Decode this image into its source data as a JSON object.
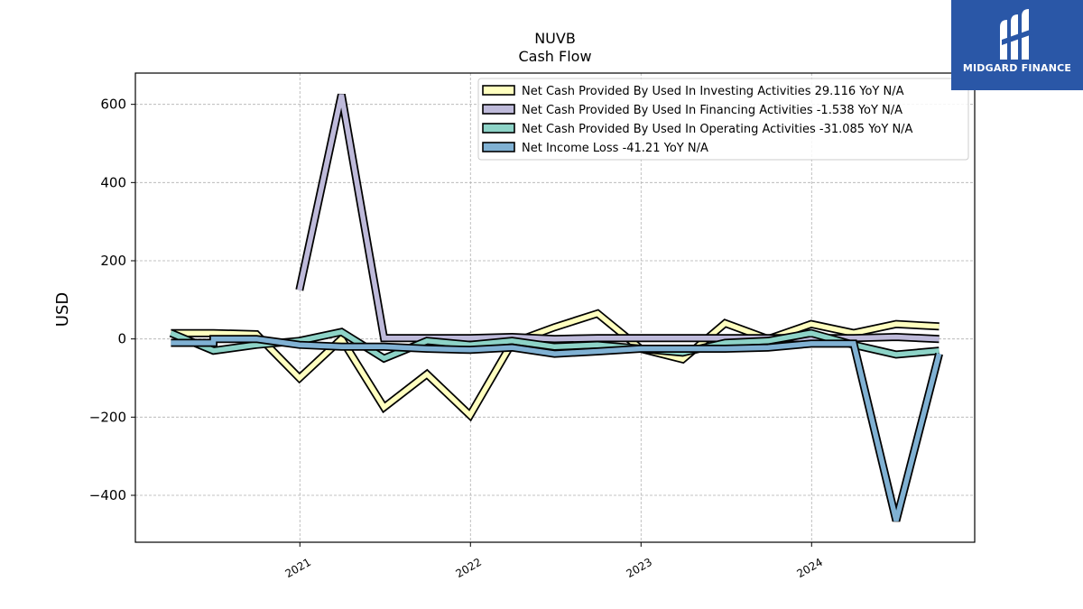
{
  "chart_data": {
    "type": "line",
    "title": "NUVB",
    "subtitle": "Cash Flow",
    "xlabel": "",
    "ylabel": "USD",
    "xlim": [
      "2020-01-15",
      "2024-12-15"
    ],
    "ylim": [
      -520,
      680
    ],
    "xticks": [
      {
        "date": "2021-01-01",
        "label": "2021"
      },
      {
        "date": "2022-01-01",
        "label": "2022"
      },
      {
        "date": "2023-01-01",
        "label": "2023"
      },
      {
        "date": "2024-01-01",
        "label": "2024"
      }
    ],
    "yticks": [
      {
        "value": 600,
        "label": "600"
      },
      {
        "value": 400,
        "label": "400"
      },
      {
        "value": 200,
        "label": "200"
      },
      {
        "value": 0,
        "label": "0"
      },
      {
        "value": -200,
        "label": "−200"
      },
      {
        "value": -400,
        "label": "−400"
      }
    ],
    "grid": true,
    "legend_position": "top-right",
    "series": [
      {
        "name": "Net Cash Provided By Used In Investing Activities",
        "legend": "Net Cash Provided By Used In Investing Activities  29.116 YoY N/A",
        "color": "#ffffbf",
        "x": [
          "2020-03-31",
          "2020-06-30",
          "2020-09-30",
          "2020-12-31",
          "2021-03-31",
          "2021-06-30",
          "2021-09-30",
          "2021-12-31",
          "2022-03-31",
          "2022-06-30",
          "2022-09-30",
          "2022-12-31",
          "2023-03-31",
          "2023-06-30",
          "2023-09-30",
          "2023-12-31",
          "2024-03-31",
          "2024-06-30",
          "2024-09-30"
        ],
        "y": [
          15,
          15,
          12,
          -100,
          0,
          -175,
          -90,
          -195,
          -10,
          30,
          65,
          -25,
          -52,
          40,
          0,
          38,
          15,
          38,
          32
        ]
      },
      {
        "name": "Net Cash Provided By Used In Financing Activities",
        "legend": "Net Cash Provided By Used In Financing Activities  -1.538 YoY N/A",
        "color": "#bebada",
        "x": [
          "2020-12-31",
          "2021-03-31",
          "2021-06-30",
          "2021-09-30",
          "2021-12-31",
          "2022-03-31",
          "2022-06-30",
          "2022-09-30",
          "2022-12-31",
          "2023-03-31",
          "2023-06-30",
          "2023-09-30",
          "2023-12-31",
          "2024-03-31",
          "2024-06-30",
          "2024-09-30"
        ],
        "y": [
          125,
          625,
          2,
          2,
          2,
          5,
          0,
          2,
          2,
          2,
          2,
          2,
          2,
          2,
          5,
          0
        ]
      },
      {
        "name": "Net Cash Provided By Used In Operating Activities",
        "legend": "Net Cash Provided By Used In Operating Activities  -31.085 YoY N/A",
        "color": "#8dd3c7",
        "x": [
          "2020-03-31",
          "2020-06-30",
          "2020-09-30",
          "2020-12-31",
          "2021-03-31",
          "2021-06-30",
          "2021-09-30",
          "2021-12-31",
          "2022-03-31",
          "2022-06-30",
          "2022-09-30",
          "2022-12-31",
          "2023-03-31",
          "2023-06-30",
          "2023-09-30",
          "2023-12-31",
          "2024-03-31",
          "2024-06-30",
          "2024-09-30"
        ],
        "y": [
          15,
          -30,
          -15,
          -5,
          18,
          -50,
          -5,
          -15,
          -5,
          -20,
          -15,
          -25,
          -35,
          -10,
          -5,
          15,
          -15,
          -40,
          -30
        ]
      },
      {
        "name": "Net Income Loss",
        "legend": "Net Income Loss  -41.21 YoY N/A",
        "color": "#80b1d3",
        "x": [
          "2020-03-31",
          "2020-06-30",
          "2020-06-30",
          "2020-09-30",
          "2020-12-31",
          "2021-03-31",
          "2021-06-30",
          "2021-09-30",
          "2021-12-31",
          "2022-03-31",
          "2022-06-30",
          "2022-09-30",
          "2022-12-31",
          "2023-03-31",
          "2023-06-30",
          "2023-09-30",
          "2023-12-31",
          "2024-03-31",
          "2024-06-30",
          "2024-09-30"
        ],
        "y": [
          -10,
          -10,
          0,
          0,
          -15,
          -20,
          -20,
          -25,
          -28,
          -22,
          -38,
          -32,
          -25,
          -25,
          -25,
          -22,
          -12,
          -12,
          -465,
          -38
        ]
      }
    ]
  },
  "logo": {
    "text": "MIDGARD FINANCE",
    "background": "#2a57a7"
  }
}
